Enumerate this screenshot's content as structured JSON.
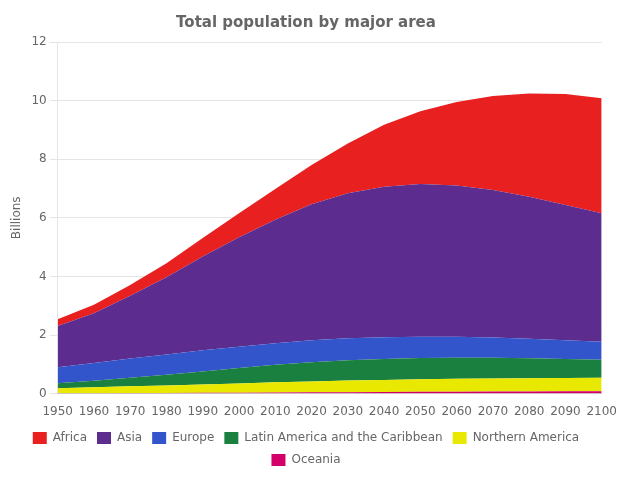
{
  "chart_data": {
    "type": "area",
    "stacked": true,
    "title": "Total population by major area",
    "ylabel": "Billions",
    "x": [
      1950,
      1960,
      1970,
      1980,
      1990,
      2000,
      2010,
      2020,
      2030,
      2040,
      2050,
      2060,
      2070,
      2080,
      2090,
      2100
    ],
    "series": [
      {
        "name": "Oceania",
        "color": "#d4006a",
        "values": [
          0.013,
          0.016,
          0.02,
          0.023,
          0.027,
          0.031,
          0.037,
          0.043,
          0.049,
          0.055,
          0.061,
          0.066,
          0.07,
          0.074,
          0.077,
          0.079
        ]
      },
      {
        "name": "Northern America",
        "color": "#e8e800",
        "values": [
          0.172,
          0.204,
          0.232,
          0.256,
          0.284,
          0.315,
          0.347,
          0.374,
          0.395,
          0.411,
          0.425,
          0.437,
          0.447,
          0.454,
          0.459,
          0.462
        ]
      },
      {
        "name": "Latin America and the Caribbean",
        "color": "#1a8040",
        "values": [
          0.168,
          0.219,
          0.287,
          0.363,
          0.444,
          0.526,
          0.601,
          0.655,
          0.695,
          0.718,
          0.727,
          0.723,
          0.706,
          0.679,
          0.646,
          0.613
        ]
      },
      {
        "name": "Europe",
        "color": "#3355cc",
        "values": [
          0.549,
          0.605,
          0.657,
          0.694,
          0.721,
          0.726,
          0.736,
          0.748,
          0.749,
          0.742,
          0.729,
          0.711,
          0.69,
          0.666,
          0.641,
          0.616
        ]
      },
      {
        "name": "Asia",
        "color": "#5c2d8e",
        "values": [
          1.404,
          1.702,
          2.143,
          2.636,
          3.202,
          3.741,
          4.209,
          4.641,
          4.947,
          5.133,
          5.209,
          5.166,
          5.038,
          4.843,
          4.613,
          4.388
        ]
      },
      {
        "name": "Africa",
        "color": "#e82020",
        "values": [
          0.228,
          0.285,
          0.366,
          0.48,
          0.635,
          0.819,
          1.049,
          1.341,
          1.704,
          2.118,
          2.489,
          2.848,
          3.205,
          3.524,
          3.79,
          3.924
        ]
      }
    ],
    "xlim": [
      1950,
      2100
    ],
    "xticks": [
      1950,
      1960,
      1970,
      1980,
      1990,
      2000,
      2010,
      2020,
      2030,
      2040,
      2050,
      2060,
      2070,
      2080,
      2090,
      2100
    ],
    "ylim": [
      0,
      12
    ],
    "yticks": [
      0,
      2,
      4,
      6,
      8,
      10,
      12
    ],
    "grid": true,
    "legend": "bottom"
  }
}
